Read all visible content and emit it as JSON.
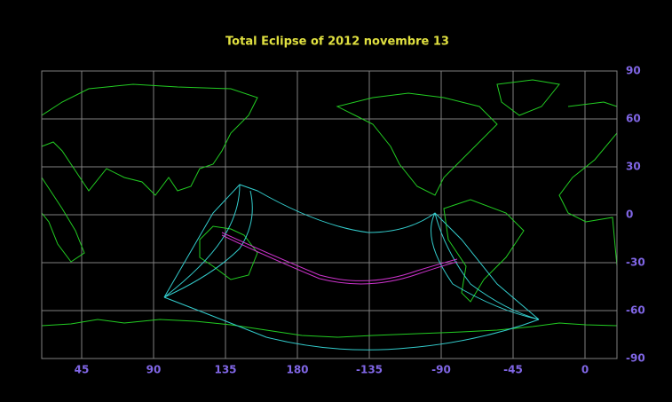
{
  "chart_data": {
    "type": "map",
    "title": "Total Eclipse of 2012 novembre 13",
    "xlim": [
      20,
      380
    ],
    "xticks": [
      45,
      90,
      135,
      180,
      {
        "value": 225,
        "label": "-135"
      },
      {
        "value": 270,
        "label": "-90"
      },
      {
        "value": 315,
        "label": "-45"
      },
      {
        "value": 360,
        "label": "0"
      }
    ],
    "ylim": [
      -90,
      90
    ],
    "yticks": [
      90,
      60,
      30,
      0,
      -30,
      -60,
      -90
    ],
    "grid": true
  }
}
